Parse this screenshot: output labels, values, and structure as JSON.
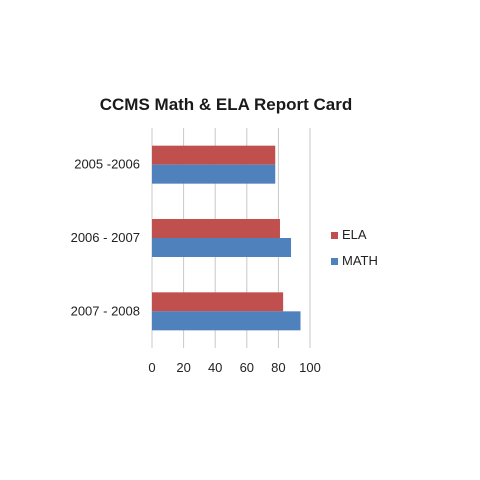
{
  "chart_data": {
    "type": "bar",
    "orientation": "horizontal",
    "title": "CCMS Math & ELA Report Card",
    "xlabel": "",
    "ylabel": "",
    "categories": [
      "2005 -2006",
      "2006 - 2007",
      "2007 - 2008"
    ],
    "series": [
      {
        "name": "ELA",
        "values": [
          78,
          81,
          83
        ],
        "color": "#c0504d"
      },
      {
        "name": "MATH",
        "values": [
          78,
          88,
          94
        ],
        "color": "#4f81bd"
      }
    ],
    "xlim": [
      0,
      100
    ],
    "xticks": [
      "0",
      "20",
      "40",
      "60",
      "80",
      "100"
    ],
    "grid": true,
    "legend_position": "right"
  }
}
